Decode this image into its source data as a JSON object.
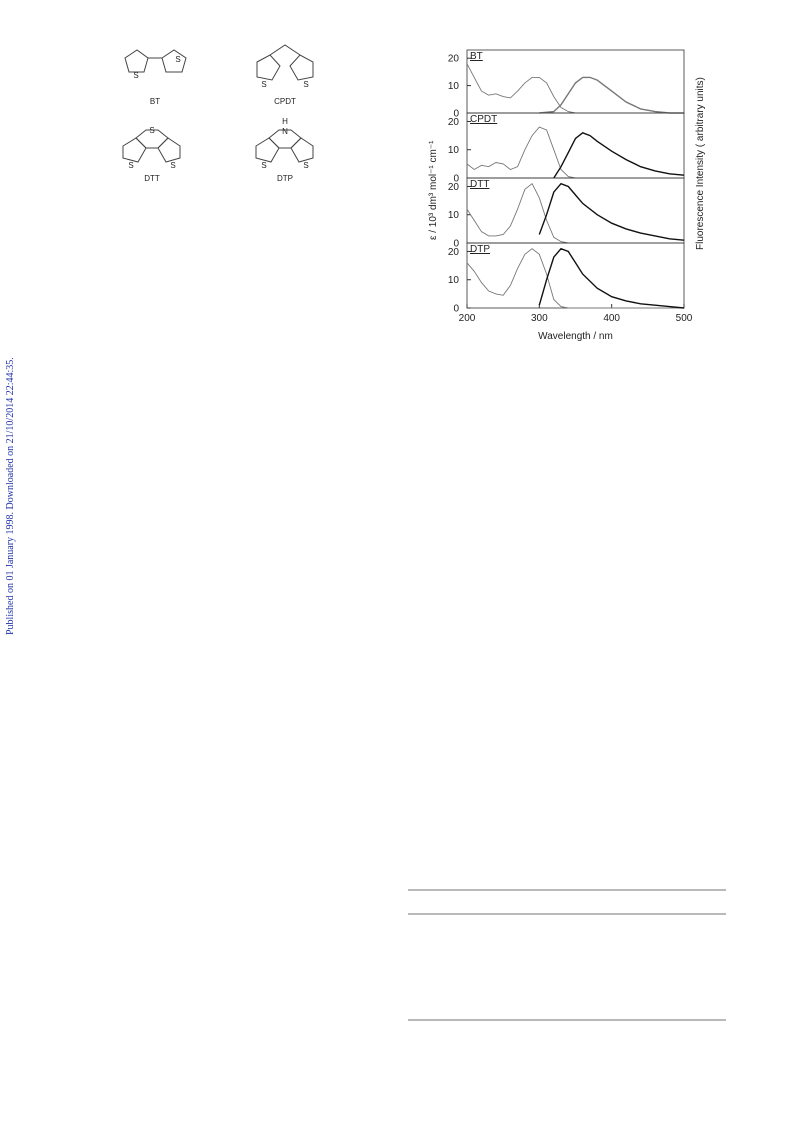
{
  "sidebar": "Published on 01 January 1998. Downloaded on 21/10/2014 22:44:35.",
  "structures": [
    {
      "label": "BT",
      "atoms": [
        "S",
        "S"
      ]
    },
    {
      "label": "CPDT",
      "atoms": [
        "S",
        "S"
      ]
    },
    {
      "label": "DTT",
      "atoms": [
        "S",
        "S",
        "S"
      ]
    },
    {
      "label": "DTP",
      "atoms": [
        "H",
        "N",
        "S",
        "S"
      ]
    }
  ],
  "chart_data": [
    {
      "type": "line",
      "label": "BT",
      "ylabel": "ε / 10³ dm³ mol⁻¹ cm⁻¹",
      "y2label": "Fluorescence Intensity ( arbitrary units)",
      "xlim": [
        200,
        500
      ],
      "ylim": [
        0,
        23
      ],
      "yticks": [
        0,
        10,
        20
      ],
      "series": [
        {
          "color": "#777777",
          "x": [
            200,
            210,
            220,
            230,
            240,
            250,
            260,
            270,
            280,
            290,
            300,
            310,
            320,
            330,
            340,
            350,
            400,
            500
          ],
          "values": [
            18,
            13,
            8,
            6.5,
            7,
            6,
            5.5,
            8,
            11,
            13,
            13,
            11,
            6,
            2,
            0.5,
            0,
            0,
            0
          ]
        },
        {
          "color": "#777777",
          "x": [
            300,
            320,
            330,
            340,
            350,
            360,
            370,
            380,
            390,
            400,
            420,
            440,
            460,
            480,
            500
          ],
          "values": [
            0,
            0.5,
            3,
            7,
            11,
            13,
            13,
            12,
            10,
            8,
            4,
            1.5,
            0.5,
            0,
            0
          ]
        }
      ]
    },
    {
      "type": "line",
      "label": "CPDT",
      "xlim": [
        200,
        500
      ],
      "ylim": [
        0,
        23
      ],
      "yticks": [
        0,
        10,
        20
      ],
      "series": [
        {
          "color": "#777777",
          "x": [
            200,
            210,
            220,
            230,
            240,
            250,
            260,
            270,
            280,
            290,
            300,
            310,
            320,
            330,
            340,
            350,
            500
          ],
          "values": [
            5,
            3,
            4.5,
            4,
            5.5,
            5,
            3,
            4,
            10,
            15,
            18,
            17,
            10,
            3,
            0.5,
            0,
            0
          ]
        },
        {
          "color": "#111111",
          "x": [
            320,
            330,
            340,
            350,
            360,
            370,
            380,
            400,
            420,
            440,
            460,
            480,
            500
          ],
          "values": [
            0,
            4,
            9,
            14,
            16,
            15,
            13,
            9.5,
            6.5,
            4,
            2.5,
            1.5,
            1
          ]
        }
      ]
    },
    {
      "type": "line",
      "label": "DTT",
      "xlim": [
        200,
        500
      ],
      "ylim": [
        0,
        23
      ],
      "yticks": [
        0,
        10,
        20
      ],
      "series": [
        {
          "color": "#777777",
          "x": [
            200,
            210,
            220,
            230,
            240,
            250,
            260,
            270,
            280,
            290,
            300,
            310,
            320,
            330,
            340,
            500
          ],
          "values": [
            12,
            8,
            4,
            2.5,
            2.5,
            3,
            6,
            12,
            19,
            21,
            16,
            8,
            2,
            0.5,
            0,
            0
          ]
        },
        {
          "color": "#111111",
          "x": [
            300,
            310,
            320,
            330,
            340,
            350,
            360,
            380,
            400,
            420,
            440,
            460,
            480,
            500
          ],
          "values": [
            3,
            10,
            18,
            21,
            20,
            17,
            14,
            10,
            7,
            5,
            3.5,
            2.5,
            1.5,
            1
          ]
        }
      ]
    },
    {
      "type": "line",
      "label": "DTP",
      "xlabel": "Wavelength / nm",
      "xlim": [
        200,
        500
      ],
      "ylim": [
        0,
        23
      ],
      "yticks": [
        0,
        10,
        20
      ],
      "xticks": [
        200,
        300,
        400,
        500
      ],
      "series": [
        {
          "color": "#777777",
          "x": [
            200,
            210,
            220,
            230,
            240,
            250,
            260,
            270,
            280,
            290,
            300,
            310,
            320,
            330,
            340,
            500
          ],
          "values": [
            16,
            13,
            9,
            6,
            5,
            4.5,
            8,
            14,
            19,
            21,
            19,
            12,
            3,
            0.5,
            0,
            0
          ]
        },
        {
          "color": "#111111",
          "x": [
            300,
            310,
            320,
            330,
            340,
            350,
            360,
            380,
            400,
            420,
            440,
            460,
            480,
            500
          ],
          "values": [
            1,
            10,
            18,
            21,
            20,
            16,
            12,
            7,
            4,
            2.5,
            1.5,
            1,
            0.5,
            0
          ]
        }
      ]
    }
  ]
}
